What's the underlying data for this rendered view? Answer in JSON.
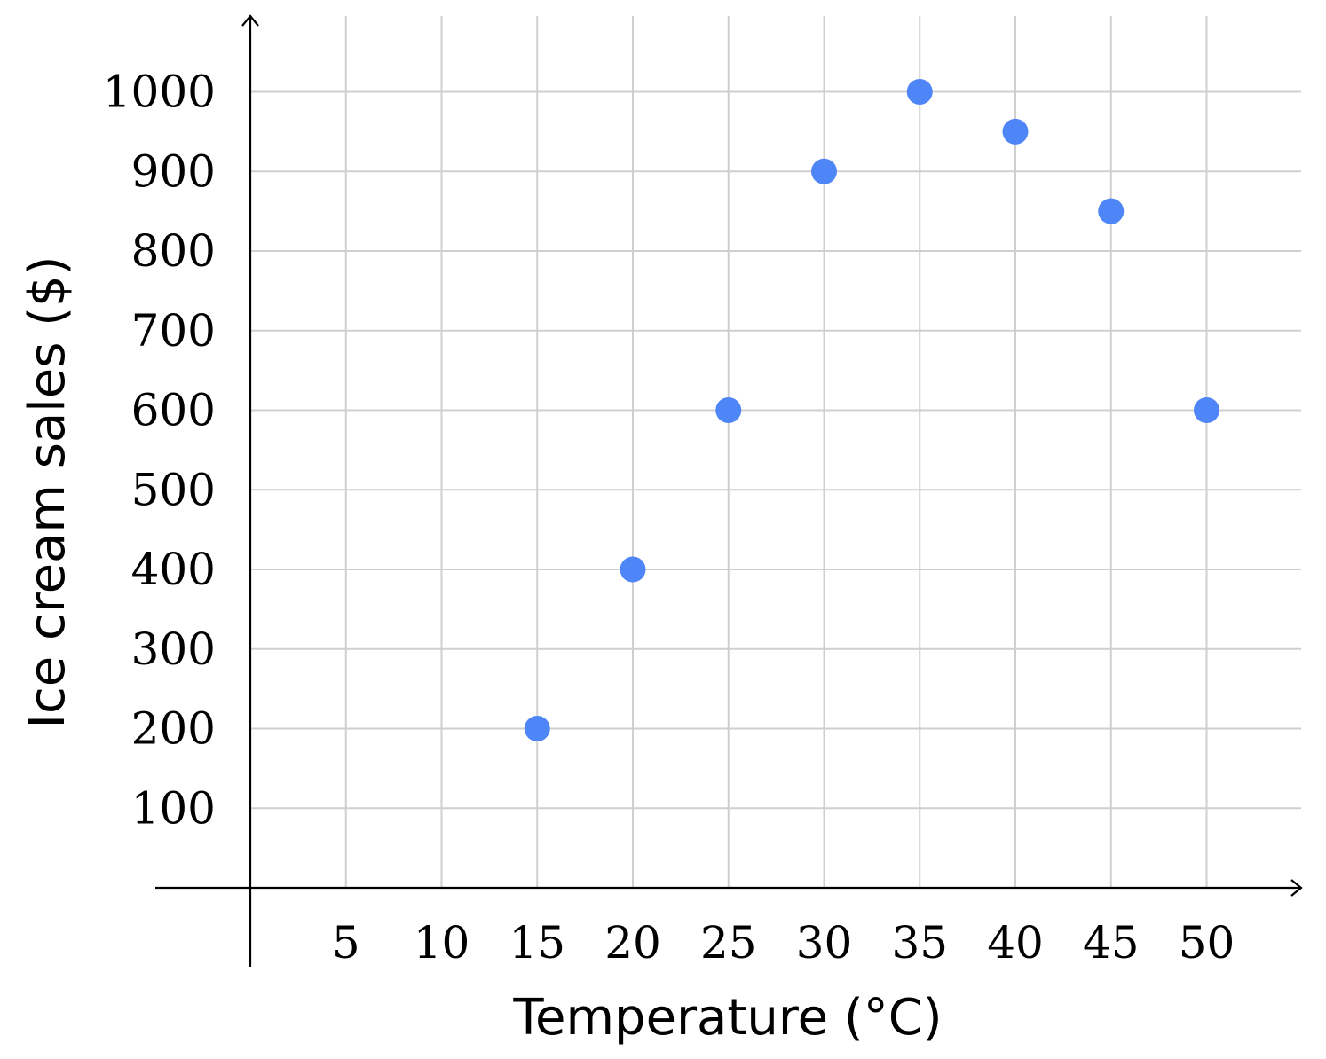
{
  "chart_data": {
    "type": "scatter",
    "xlabel": "Temperature (°C)",
    "ylabel": "Ice cream sales ($)",
    "x_ticks": [
      5,
      10,
      15,
      20,
      25,
      30,
      35,
      40,
      45,
      50
    ],
    "y_ticks": [
      100,
      200,
      300,
      400,
      500,
      600,
      700,
      800,
      900,
      1000
    ],
    "xlim": [
      -5,
      55
    ],
    "ylim": [
      -100,
      1100
    ],
    "grid": true,
    "marker_color": "#4f86f7",
    "series": [
      {
        "x": [
          15,
          20,
          25,
          30,
          35,
          40,
          45,
          50
        ],
        "y": [
          200,
          400,
          600,
          900,
          1000,
          950,
          850,
          600
        ]
      }
    ]
  }
}
